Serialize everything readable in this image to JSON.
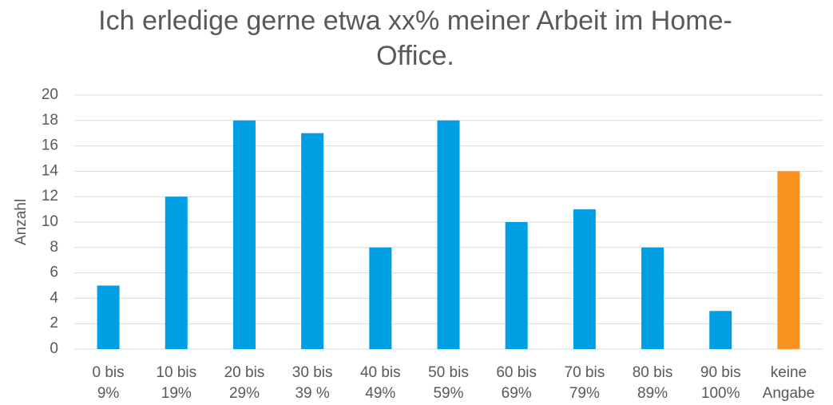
{
  "chart_data": {
    "type": "bar",
    "title": "Ich erledige gerne etwa xx% meiner Arbeit im Home-Office.",
    "y_label": "Anzahl",
    "categories": [
      [
        "0 bis",
        "9%"
      ],
      [
        "10 bis",
        "19%"
      ],
      [
        "20 bis",
        "29%"
      ],
      [
        "30 bis",
        "39 %"
      ],
      [
        "40 bis",
        "49%"
      ],
      [
        "50 bis",
        "59%"
      ],
      [
        "60 bis",
        "69%"
      ],
      [
        "70 bis",
        "79%"
      ],
      [
        "80 bis",
        "89%"
      ],
      [
        "90 bis",
        "100%"
      ],
      [
        "keine",
        "Angabe"
      ]
    ],
    "values": [
      5,
      12,
      18,
      17,
      8,
      18,
      10,
      11,
      8,
      3,
      14
    ],
    "colors": [
      "#009fe3",
      "#009fe3",
      "#009fe3",
      "#009fe3",
      "#009fe3",
      "#009fe3",
      "#009fe3",
      "#009fe3",
      "#009fe3",
      "#009fe3",
      "#f7931e"
    ],
    "ylim": [
      0,
      20
    ],
    "yticks": [
      0,
      2,
      4,
      6,
      8,
      10,
      12,
      14,
      16,
      18,
      20
    ],
    "grid": true
  }
}
